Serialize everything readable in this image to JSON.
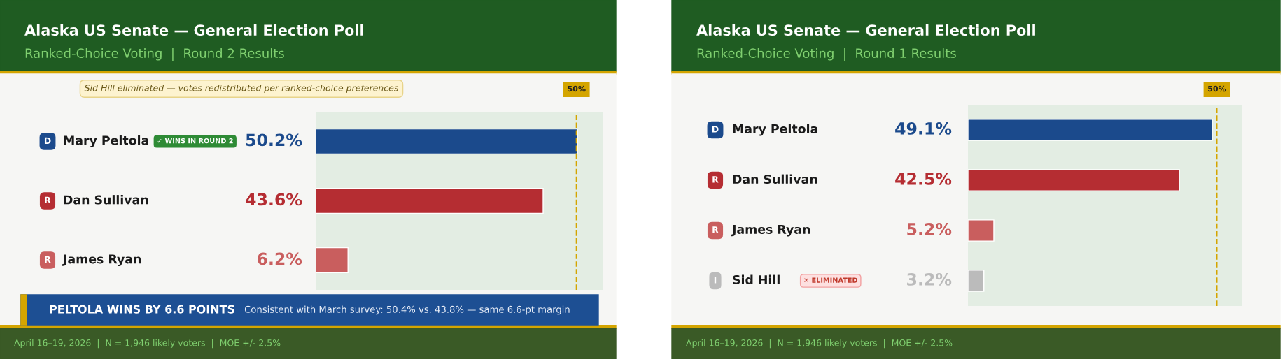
{
  "chart_data": [
    {
      "type": "bar",
      "orientation": "horizontal",
      "title": "Alaska US Senate — General Election Poll",
      "subtitle": "Ranked-Choice Voting  |  Round 2 Results",
      "categories": [
        "Mary Peltola",
        "Dan Sullivan",
        "James Ryan"
      ],
      "values": [
        50.2,
        43.6,
        6.2
      ],
      "colors": [
        "#1b4a8c",
        "#b52d32",
        "#c95e5e"
      ],
      "value_labels": [
        "50.2%",
        "43.6%",
        "6.2%"
      ],
      "xlim": [
        0,
        55
      ],
      "ref_lines": [
        {
          "axis": "x",
          "value": 50,
          "label": "50%",
          "color": "#d4a500",
          "line_style": "dashed"
        }
      ],
      "annotations": [
        "D",
        "R",
        "R",
        "✓ WINS IN ROUND 2",
        "Sid Hill eliminated — votes redistributed per ranked-choice preferences",
        "PELTOLA WINS BY 6.6 POINTS",
        "Consistent with March survey: 50.4% vs. 43.8% — same 6.6-pt margin",
        "April 16–19, 2026  |  N = 1,946 likely voters  |  MOE +/- 2.5%"
      ]
    },
    {
      "type": "bar",
      "orientation": "horizontal",
      "title": "Alaska US Senate — General Election Poll",
      "subtitle": "Ranked-Choice Voting  |  Round 1 Results",
      "categories": [
        "Mary Peltola",
        "Dan Sullivan",
        "James Ryan",
        "Sid Hill"
      ],
      "values": [
        49.1,
        42.5,
        5.2,
        3.2
      ],
      "colors": [
        "#1b4a8c",
        "#b52d32",
        "#c95e5e",
        "#bbbbbb"
      ],
      "value_labels": [
        "49.1%",
        "42.5%",
        "5.2%",
        "3.2%"
      ],
      "xlim": [
        0,
        55
      ],
      "ref_lines": [
        {
          "axis": "x",
          "value": 50,
          "label": "50%",
          "color": "#d4a500",
          "line_style": "dashed"
        }
      ],
      "annotations": [
        "D",
        "R",
        "R",
        "I",
        "✕ ELIMINATED",
        "April 16–19, 2026  |  N = 1,946 likely voters  |  MOE +/- 2.5%"
      ]
    }
  ]
}
